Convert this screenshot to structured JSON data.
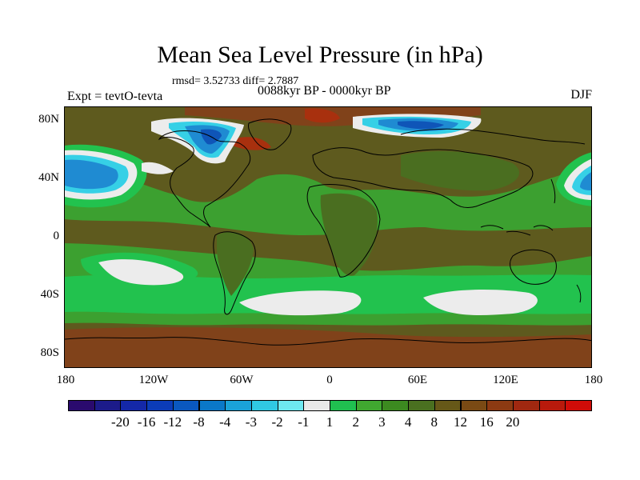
{
  "title": "Mean Sea Level Pressure (in hPa)",
  "stats_text": "rmsd= 3.52733  diff= 2.7887",
  "left_label": "Expt = tevtO-tevta",
  "center_label": "0088kyr BP - 0000kyr BP",
  "right_label": "DJF",
  "y_ticks": [
    "80N",
    "40N",
    "0",
    "40S",
    "80S"
  ],
  "x_ticks": [
    "180",
    "120W",
    "60W",
    "0",
    "60E",
    "120E",
    "180"
  ],
  "colorbar_colors": [
    "#2a0a6e",
    "#1c1b8a",
    "#1428a8",
    "#0b3cb8",
    "#0a58c0",
    "#0a78c8",
    "#1aa2d8",
    "#30c8e2",
    "#6ee8f0",
    "#e8e8e8",
    "#20c050",
    "#40a830",
    "#3c8a20",
    "#4a7020",
    "#665818",
    "#7a4a14",
    "#8c3a12",
    "#a02810",
    "#b81a0c",
    "#d00c08"
  ],
  "colorbar_labels": [
    "-20",
    "-16",
    "-12",
    "-8",
    "-4",
    "-3",
    "-2",
    "-1",
    "1",
    "2",
    "3",
    "4",
    "8",
    "12",
    "16",
    "20"
  ],
  "map_colors": {
    "base": "#5e5a1e",
    "olive": "#4a6e20",
    "green": "#3ca030",
    "bright_green": "#22c24e",
    "white": "#ececec",
    "cyan": "#36d0e6",
    "blue": "#1f8bd2",
    "dark_blue": "#0f55b8",
    "brown": "#80421a",
    "red": "#a8300e"
  }
}
